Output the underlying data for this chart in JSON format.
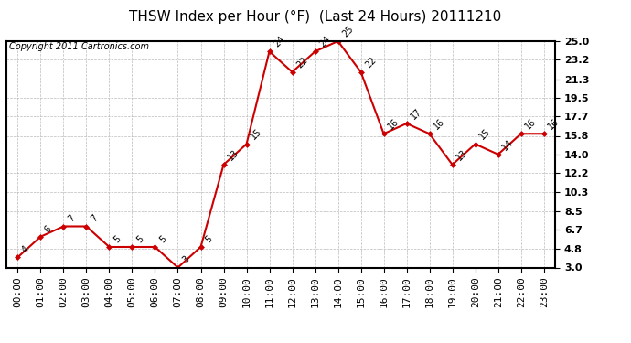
{
  "title": "THSW Index per Hour (°F)  (Last 24 Hours) 20111210",
  "copyright": "Copyright 2011 Cartronics.com",
  "hours": [
    "00:00",
    "01:00",
    "02:00",
    "03:00",
    "04:00",
    "05:00",
    "06:00",
    "07:00",
    "08:00",
    "09:00",
    "10:00",
    "11:00",
    "12:00",
    "13:00",
    "14:00",
    "15:00",
    "16:00",
    "17:00",
    "18:00",
    "19:00",
    "20:00",
    "21:00",
    "22:00",
    "23:00"
  ],
  "values": [
    4,
    6,
    7,
    7,
    5,
    5,
    5,
    3,
    5,
    13,
    15,
    24,
    22,
    24,
    25,
    22,
    16,
    17,
    16,
    13,
    15,
    14,
    16,
    16
  ],
  "line_color": "#cc0000",
  "marker_color": "#cc0000",
  "bg_color": "#ffffff",
  "grid_color": "#bbbbbb",
  "yticks": [
    3.0,
    4.8,
    6.7,
    8.5,
    10.3,
    12.2,
    14.0,
    15.8,
    17.7,
    19.5,
    21.3,
    23.2,
    25.0
  ],
  "ylim": [
    3.0,
    25.0
  ],
  "title_fontsize": 11,
  "label_fontsize": 8,
  "copyright_fontsize": 7,
  "annotation_fontsize": 7
}
